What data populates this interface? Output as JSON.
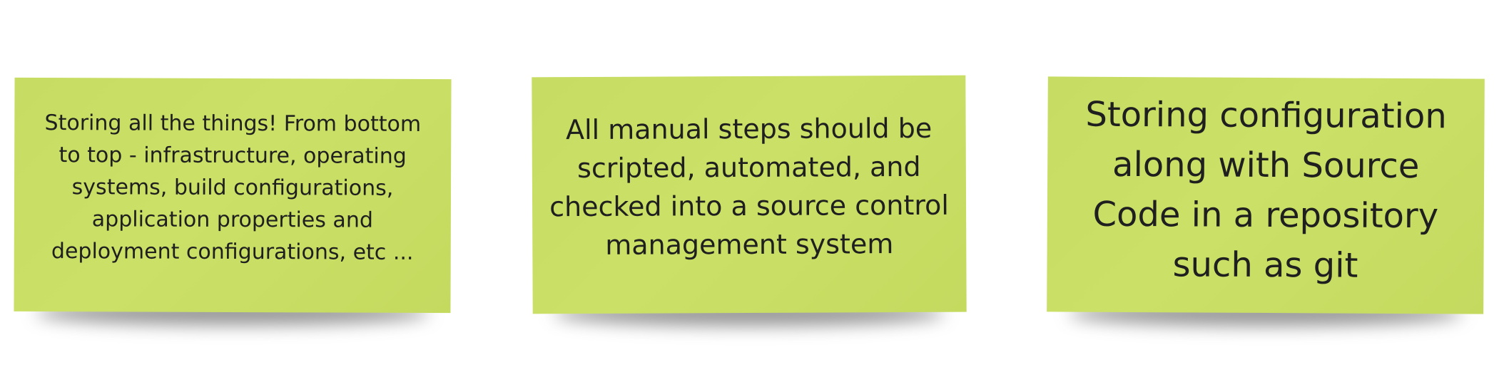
{
  "notes": [
    {
      "text": "Storing all the things! From bottom\nto top - infrastructure, operating\nsystems, build configurations,\napplication properties and\ndeployment configurations, etc ..."
    },
    {
      "text": "All manual steps should be\nscripted, automated, and\nchecked into a source control\nmanagement system"
    },
    {
      "text": "Storing configuration\nalong with Source\nCode in a repository\nsuch as git"
    }
  ],
  "colors": {
    "note": "#c9de65",
    "text": "#1f1f1f",
    "background": "#ffffff"
  }
}
